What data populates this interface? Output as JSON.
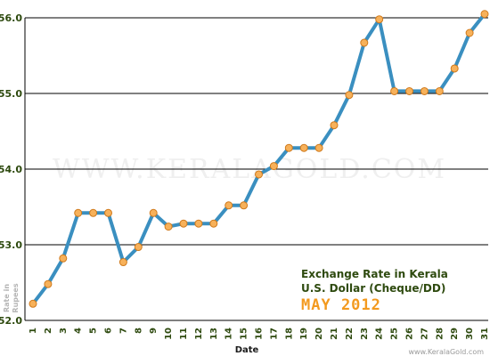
{
  "colors": {
    "line": "#3a8fc0",
    "marker_fill": "#f7b15a",
    "marker_stroke": "#d07a1c",
    "grid": "#000000",
    "text_green": "#2e4a0f",
    "accent": "#f39a1f"
  },
  "watermark_text": "WWW.KERALAGOLD.COM",
  "footer_text": "www.KeralaGold.com",
  "chart_data": {
    "type": "line",
    "title_line1": "Exchange Rate in Kerala",
    "title_line2": "U.S. Dollar (Cheque/DD)",
    "period": "MAY 2012",
    "xlabel": "Date",
    "ylabel_line1": "Rate in",
    "ylabel_line2": "Rupees",
    "ylim": [
      52.0,
      56.0
    ],
    "yticks": [
      "52.0",
      "53.0",
      "54.0",
      "55.0",
      "56.0"
    ],
    "grid": true,
    "categories": [
      "1",
      "2",
      "3",
      "4",
      "5",
      "6",
      "7",
      "8",
      "9",
      "10",
      "11",
      "12",
      "13",
      "14",
      "15",
      "16",
      "17",
      "18",
      "19",
      "20",
      "21",
      "22",
      "23",
      "24",
      "25",
      "26",
      "27",
      "28",
      "29",
      "30",
      "31"
    ],
    "values": [
      52.22,
      52.48,
      52.82,
      53.42,
      53.42,
      53.42,
      52.77,
      52.97,
      53.42,
      53.24,
      53.28,
      53.28,
      53.28,
      53.52,
      53.52,
      53.93,
      54.04,
      54.28,
      54.28,
      54.28,
      54.58,
      54.98,
      55.67,
      55.98,
      55.03,
      55.03,
      55.03,
      55.03,
      55.33,
      55.8,
      56.05
    ]
  }
}
